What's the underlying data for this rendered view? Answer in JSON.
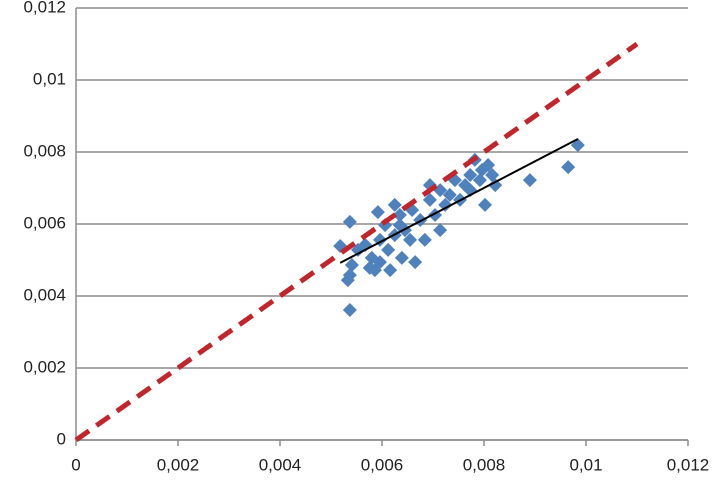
{
  "chart_data": {
    "type": "scatter",
    "xlim": [
      0,
      0.012
    ],
    "ylim": [
      0,
      0.012
    ],
    "xticks": [
      0,
      {
        "value": 0.002,
        "label": "0,002"
      },
      {
        "value": 0.004,
        "label": "0,004"
      },
      {
        "value": 0.006,
        "label": "0,006"
      },
      {
        "value": 0.008,
        "label": "0,008"
      },
      {
        "value": 0.01,
        "label": "0,01"
      },
      {
        "value": 0.012,
        "label": "0,012"
      }
    ],
    "yticks": [
      0,
      {
        "value": 0.002,
        "label": "0,002"
      },
      {
        "value": 0.004,
        "label": "0,004"
      },
      {
        "value": 0.006,
        "label": "0,006"
      },
      {
        "value": 0.008,
        "label": "0,008"
      },
      {
        "value": 0.01,
        "label": "0,01"
      },
      {
        "value": 0.012,
        "label": "0,012"
      }
    ],
    "grid": true,
    "series": [
      {
        "style": "markers",
        "color": "#4f81bd",
        "x": [
          0.00537,
          0.00537,
          0.00518,
          0.00541,
          0.00537,
          0.00533,
          0.00553,
          0.00567,
          0.00576,
          0.0058,
          0.00596,
          0.00592,
          0.00606,
          0.00596,
          0.00616,
          0.00612,
          0.00625,
          0.00635,
          0.00625,
          0.00645,
          0.00639,
          0.00655,
          0.00665,
          0.00659,
          0.00675,
          0.00684,
          0.00694,
          0.00694,
          0.00704,
          0.00714,
          0.00724,
          0.00714,
          0.00733,
          0.00743,
          0.00753,
          0.00763,
          0.00773,
          0.00782,
          0.00773,
          0.00792,
          0.00796,
          0.00802,
          0.00808,
          0.00816,
          0.00822,
          0.0089,
          0.00965,
          0.00984,
          0.00635,
          0.00586
        ],
        "y": [
          0.00361,
          0.00606,
          0.00539,
          0.00486,
          0.00458,
          0.00444,
          0.00528,
          0.00542,
          0.00478,
          0.00506,
          0.00556,
          0.00633,
          0.00597,
          0.00494,
          0.00472,
          0.00528,
          0.00569,
          0.00625,
          0.00653,
          0.00583,
          0.00506,
          0.00556,
          0.00494,
          0.00639,
          0.00611,
          0.00556,
          0.00667,
          0.00708,
          0.00625,
          0.00583,
          0.00653,
          0.00694,
          0.00681,
          0.00722,
          0.00667,
          0.00708,
          0.00736,
          0.00778,
          0.00694,
          0.00722,
          0.0075,
          0.00653,
          0.00764,
          0.00736,
          0.00708,
          0.00722,
          0.00758,
          0.00819,
          0.00597,
          0.00472
        ]
      },
      {
        "style": "line",
        "color": "#000000",
        "x": [
          0.00518,
          0.00984
        ],
        "y": [
          0.00492,
          0.00836
        ]
      },
      {
        "style": "dashed",
        "color": "#c0262c",
        "x": [
          0,
          0.011
        ],
        "y": [
          0,
          0.011
        ]
      }
    ]
  }
}
